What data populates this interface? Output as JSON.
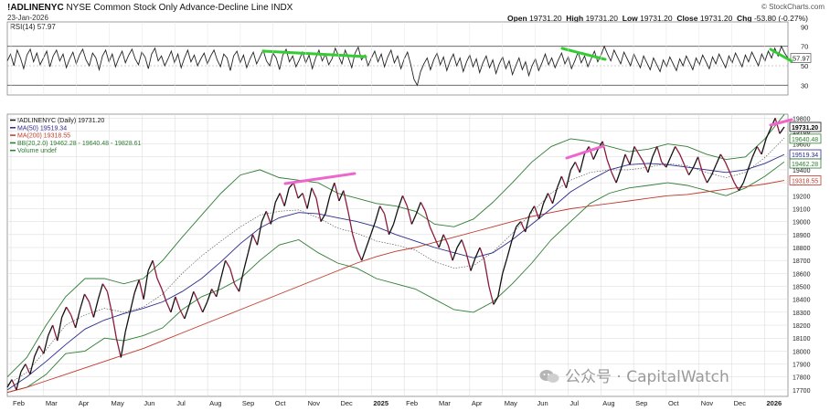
{
  "header": {
    "symbol": "!ADLINENYC",
    "description": "NYSE Common Stock Only Advance-Decline Line  INDX",
    "date": "23-Jan-2026",
    "source": "© StockCharts.com",
    "ohlc": [
      {
        "label": "Open",
        "value": "19731.20"
      },
      {
        "label": "High",
        "value": "19731.20"
      },
      {
        "label": "Low",
        "value": "19731.20"
      },
      {
        "label": "Close",
        "value": "19731.20"
      },
      {
        "label": "Chg",
        "value": "-53.80 (-0.27%)"
      }
    ]
  },
  "watermark": "公众号 · CapitalWatch",
  "colors": {
    "price": "#111111",
    "price_down": "#8b1a3a",
    "ma50": "#2a2a8c",
    "ma200": "#c0392b",
    "bb": "#2e7d32",
    "trend_green": "#33cc33",
    "trend_pink": "#ee66cc",
    "grid": "#d8d8d8"
  },
  "chart_data": [
    {
      "type": "line",
      "title": "RSI(14) 57.97",
      "ylim": [
        20,
        95
      ],
      "yticks": [
        "90",
        "70",
        "57.97",
        "50",
        "30"
      ],
      "bands": [
        70,
        30
      ],
      "last_value": "57.97",
      "series": [
        {
          "name": "RSI(14)",
          "values": [
            55,
            62,
            50,
            66,
            58,
            47,
            61,
            67,
            54,
            63,
            51,
            58,
            65,
            49,
            60,
            66,
            55,
            62,
            48,
            57,
            64,
            52,
            61,
            67,
            56,
            50,
            63,
            58,
            46,
            60,
            66,
            54,
            62,
            49,
            58,
            65,
            53,
            61,
            67,
            57,
            51,
            64,
            59,
            47,
            62,
            68,
            55,
            60,
            50,
            57,
            65,
            53,
            62,
            48,
            58,
            66,
            54,
            61,
            50,
            57,
            63,
            52,
            60,
            66,
            56,
            49,
            62,
            58,
            45,
            60,
            65,
            53,
            61,
            48,
            57,
            64,
            52,
            59,
            66,
            55,
            50,
            63,
            58,
            46,
            61,
            67,
            54,
            60,
            49,
            56,
            64,
            53,
            61,
            47,
            58,
            66,
            55,
            62,
            51,
            57,
            68,
            60,
            52,
            66,
            58,
            48,
            63,
            69,
            56,
            61,
            50,
            58,
            65,
            54,
            62,
            49,
            59,
            66,
            53,
            60,
            47,
            57,
            64,
            51,
            36,
            30,
            44,
            52,
            58,
            46,
            56,
            63,
            51,
            59,
            45,
            55,
            62,
            50,
            58,
            44,
            54,
            61,
            49,
            57,
            43,
            53,
            60,
            48,
            56,
            42,
            52,
            59,
            47,
            55,
            41,
            50,
            58,
            46,
            54,
            40,
            50,
            57,
            45,
            53,
            62,
            51,
            58,
            48,
            56,
            63,
            52,
            59,
            47,
            55,
            64,
            53,
            60,
            49,
            57,
            65,
            54,
            61,
            70,
            62,
            55,
            66,
            59,
            52,
            64,
            57,
            50,
            62,
            55,
            48,
            60,
            53,
            46,
            58,
            51,
            44,
            56,
            49,
            59,
            52,
            45,
            57,
            50,
            60,
            53,
            46,
            58,
            51,
            61,
            54,
            47,
            59,
            52,
            62,
            55,
            48,
            60,
            53,
            63,
            56,
            49,
            61,
            54,
            64,
            57,
            50,
            62,
            55,
            65,
            58,
            68,
            60,
            70,
            63,
            58
          ]
        }
      ]
    },
    {
      "type": "line",
      "title": "!ADLINENYC (Daily) 19731.20",
      "xlabel": "",
      "ylabel": "",
      "ylim": [
        17650,
        19830
      ],
      "x_ticks": [
        "Feb",
        "Mar",
        "Apr",
        "May",
        "Jun",
        "Jul",
        "Aug",
        "Sep",
        "Oct",
        "Nov",
        "Dec",
        "2025",
        "Feb",
        "Mar",
        "Apr",
        "May",
        "Jun",
        "Jul",
        "Aug",
        "Sep",
        "Oct",
        "Nov",
        "Dec",
        "2026"
      ],
      "y_ticks": [
        17700,
        17800,
        17900,
        18000,
        18100,
        18200,
        18300,
        18400,
        18500,
        18600,
        18700,
        18800,
        18900,
        19000,
        19100,
        19200,
        19300,
        19400,
        19500,
        19600,
        19700,
        19800
      ],
      "legend": [
        {
          "label": "!ADLINENYC (Daily) 19731.20",
          "color": "#111111"
        },
        {
          "label": "MA(50) 19519.34",
          "color": "#2a2a8c"
        },
        {
          "label": "MA(200) 19318.55",
          "color": "#c0392b"
        },
        {
          "label": "BB(20,2.0) 19462.28 - 19640.48 - 19828.61",
          "color": "#2e7d32"
        },
        {
          "label": "Volume undef",
          "color": "#2e7d32"
        }
      ],
      "value_tags": [
        {
          "label": "19731.20",
          "color": "#111111",
          "value": 19731.2
        },
        {
          "label": "19640.48",
          "color": "#2e7d32",
          "value": 19640.48
        },
        {
          "label": "19519.34",
          "color": "#2a2a8c",
          "value": 19519.34
        },
        {
          "label": "19462.28",
          "color": "#2e7d32",
          "value": 19462.28
        },
        {
          "label": "19318.55",
          "color": "#c0392b",
          "value": 19318.55
        }
      ],
      "series": [
        {
          "name": "!ADLINENYC",
          "values": [
            17720,
            17780,
            17700,
            17840,
            17900,
            17820,
            17960,
            18040,
            17980,
            18120,
            18200,
            18080,
            18260,
            18340,
            18280,
            18180,
            18320,
            18440,
            18380,
            18260,
            18400,
            18520,
            18460,
            18300,
            18100,
            17950,
            18150,
            18300,
            18450,
            18550,
            18400,
            18620,
            18700,
            18560,
            18480,
            18380,
            18300,
            18420,
            18320,
            18250,
            18350,
            18460,
            18380,
            18300,
            18380,
            18480,
            18420,
            18560,
            18700,
            18640,
            18520,
            18460,
            18620,
            18760,
            18900,
            18820,
            19000,
            19080,
            18980,
            19150,
            19220,
            19120,
            19260,
            19300,
            19180,
            19220,
            19100,
            19260,
            19180,
            19000,
            19060,
            19200,
            19300,
            19160,
            19240,
            19080,
            18900,
            18780,
            18700,
            18800,
            18900,
            19000,
            19120,
            19060,
            18900,
            18980,
            19100,
            19200,
            19120,
            18980,
            19060,
            19150,
            19080,
            18960,
            18880,
            18800,
            18900,
            18820,
            18700,
            18800,
            18860,
            18760,
            18620,
            18720,
            18800,
            18700,
            18500,
            18360,
            18420,
            18600,
            18720,
            18850,
            18960,
            19000,
            18920,
            19060,
            19120,
            19020,
            19140,
            19220,
            19140,
            19260,
            19350,
            19260,
            19400,
            19460,
            19380,
            19520,
            19580,
            19480,
            19560,
            19620,
            19480,
            19380,
            19300,
            19400,
            19520,
            19440,
            19580,
            19520,
            19460,
            19380,
            19500,
            19580,
            19460,
            19420,
            19500,
            19580,
            19520,
            19440,
            19360,
            19420,
            19500,
            19380,
            19300,
            19360,
            19440,
            19520,
            19460,
            19380,
            19300,
            19240,
            19300,
            19400,
            19500,
            19580,
            19520,
            19640,
            19720,
            19800,
            19680,
            19731
          ]
        },
        {
          "name": "MA(50)",
          "values": [
            17700,
            17800,
            17920,
            18050,
            18170,
            18240,
            18290,
            18330,
            18380,
            18460,
            18560,
            18690,
            18830,
            18950,
            19030,
            19070,
            19060,
            19030,
            19000,
            18960,
            18900,
            18850,
            18800,
            18760,
            18720,
            18760,
            18860,
            18980,
            19100,
            19230,
            19320,
            19400,
            19440,
            19450,
            19440,
            19420,
            19400,
            19380,
            19400,
            19450,
            19519
          ]
        },
        {
          "name": "MA(200)",
          "values": [
            17680,
            17720,
            17770,
            17820,
            17870,
            17920,
            17970,
            18020,
            18080,
            18140,
            18200,
            18260,
            18320,
            18380,
            18440,
            18500,
            18560,
            18620,
            18680,
            18730,
            18770,
            18800,
            18840,
            18880,
            18920,
            18960,
            19000,
            19040,
            19070,
            19100,
            19120,
            19140,
            19160,
            19180,
            19200,
            19210,
            19230,
            19250,
            19270,
            19290,
            19318
          ]
        },
        {
          "name": "BB upper",
          "values": [
            17800,
            17950,
            18200,
            18420,
            18560,
            18560,
            18520,
            18560,
            18700,
            18880,
            19050,
            19220,
            19360,
            19400,
            19340,
            19320,
            19300,
            19220,
            19180,
            19140,
            19120,
            19080,
            18980,
            18960,
            19020,
            19150,
            19300,
            19460,
            19580,
            19640,
            19620,
            19580,
            19540,
            19560,
            19600,
            19580,
            19520,
            19480,
            19500,
            19640,
            19828
          ]
        },
        {
          "name": "BB lower",
          "values": [
            17680,
            17720,
            17820,
            17980,
            18000,
            18100,
            18080,
            18120,
            18180,
            18320,
            18420,
            18480,
            18560,
            18700,
            18820,
            18860,
            18760,
            18680,
            18640,
            18560,
            18520,
            18480,
            18400,
            18320,
            18300,
            18380,
            18520,
            18680,
            18860,
            19000,
            19140,
            19220,
            19260,
            19280,
            19300,
            19280,
            19240,
            19200,
            19260,
            19350,
            19462
          ]
        }
      ]
    }
  ]
}
